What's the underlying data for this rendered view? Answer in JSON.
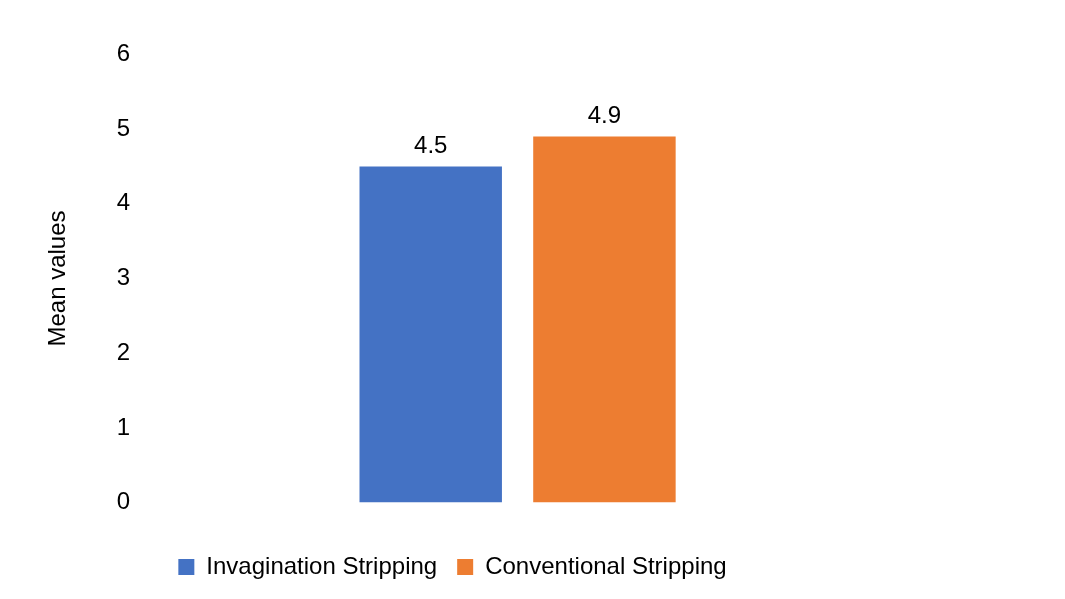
{
  "chart_data": {
    "type": "bar",
    "ylabel": "Mean values",
    "categories": [
      null
    ],
    "series": [
      {
        "name": "Invagination Stripping",
        "color": "#4472c4",
        "values": [
          4.5
        ]
      },
      {
        "name": "Conventional Stripping",
        "color": "#ed7d31",
        "values": [
          4.9
        ]
      }
    ],
    "ylim": [
      0,
      6
    ],
    "yticks": [
      0,
      1,
      2,
      3,
      4,
      5,
      6
    ],
    "grid": false,
    "legend": "bottom",
    "data_labels": true
  }
}
